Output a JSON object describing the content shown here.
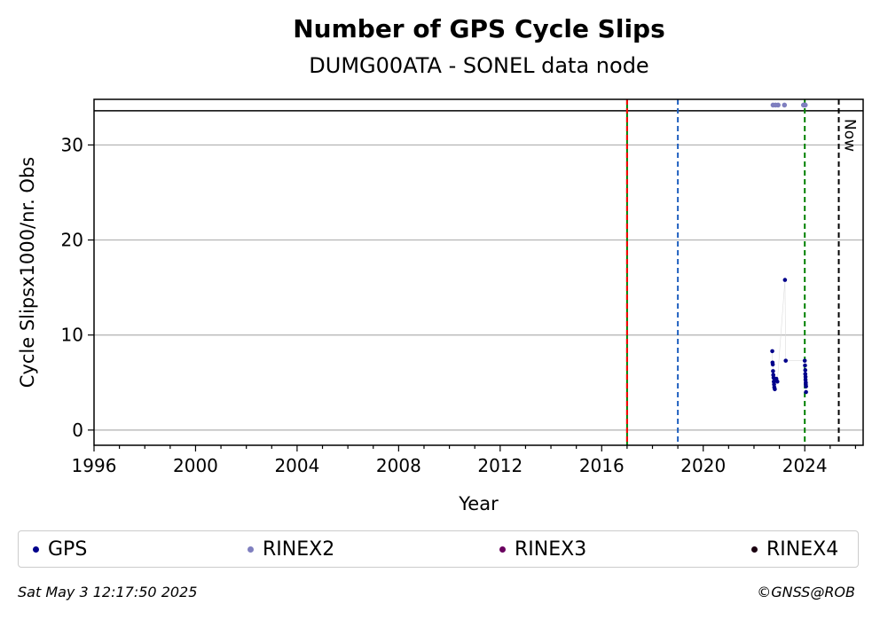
{
  "chart_data": {
    "type": "scatter",
    "title": "Number of GPS Cycle Slips",
    "subtitle": "DUMG00ATA - SONEL data node",
    "xlabel": "Year",
    "ylabel": "Cycle Slipsx1000/nr. Obs",
    "xlim": [
      1996,
      2026.3
    ],
    "ylim": [
      -1.6,
      34.8
    ],
    "xticks": [
      1996,
      2000,
      2004,
      2008,
      2012,
      2016,
      2020,
      2024
    ],
    "yticks": [
      0,
      10,
      20,
      30
    ],
    "grid": "horizontal",
    "threshold_y": 33.6,
    "vlines": [
      {
        "x": 2017.0,
        "color": "#008000",
        "style": "solid"
      },
      {
        "x": 2017.0,
        "color": "#ff0000",
        "style": "dashed"
      },
      {
        "x": 2019.0,
        "color": "#1f5fbf",
        "style": "dashed"
      },
      {
        "x": 2024.0,
        "color": "#008000",
        "style": "dashed"
      },
      {
        "x": 2025.34,
        "color": "#000000",
        "style": "dashed",
        "label": "Now"
      }
    ],
    "series": [
      {
        "name": "GPS",
        "color": "#00008b",
        "points": [
          [
            2022.72,
            8.3
          ],
          [
            2022.73,
            7.1
          ],
          [
            2022.74,
            6.9
          ],
          [
            2022.75,
            6.2
          ],
          [
            2022.76,
            5.8
          ],
          [
            2022.77,
            5.5
          ],
          [
            2022.78,
            5.1
          ],
          [
            2022.79,
            4.8
          ],
          [
            2022.8,
            4.5
          ],
          [
            2022.82,
            4.3
          ],
          [
            2022.88,
            5.4
          ],
          [
            2022.92,
            5.1
          ],
          [
            2023.22,
            15.8
          ],
          [
            2023.25,
            7.3
          ],
          [
            2024.0,
            7.3
          ],
          [
            2024.01,
            6.8
          ],
          [
            2024.02,
            6.3
          ],
          [
            2024.02,
            5.9
          ],
          [
            2024.03,
            5.6
          ],
          [
            2024.03,
            5.3
          ],
          [
            2024.04,
            5.0
          ],
          [
            2024.04,
            4.8
          ],
          [
            2024.05,
            4.6
          ],
          [
            2024.05,
            4.0
          ]
        ]
      },
      {
        "name": "RINEX2",
        "color": "#7f7fbf",
        "points": [
          [
            2022.75,
            34.2
          ],
          [
            2022.85,
            34.2
          ],
          [
            2022.95,
            34.2
          ],
          [
            2023.2,
            34.2
          ],
          [
            2023.95,
            34.2
          ],
          [
            2024.0,
            34.2
          ],
          [
            2024.02,
            34.2
          ]
        ]
      },
      {
        "name": "RINEX3",
        "color": "#6a005f",
        "points": []
      },
      {
        "name": "RINEX4",
        "color": "#1a0010",
        "points": []
      }
    ]
  },
  "footer": {
    "timestamp": "Sat May  3 12:17:50 2025",
    "copyright": "©GNSS@ROB"
  }
}
